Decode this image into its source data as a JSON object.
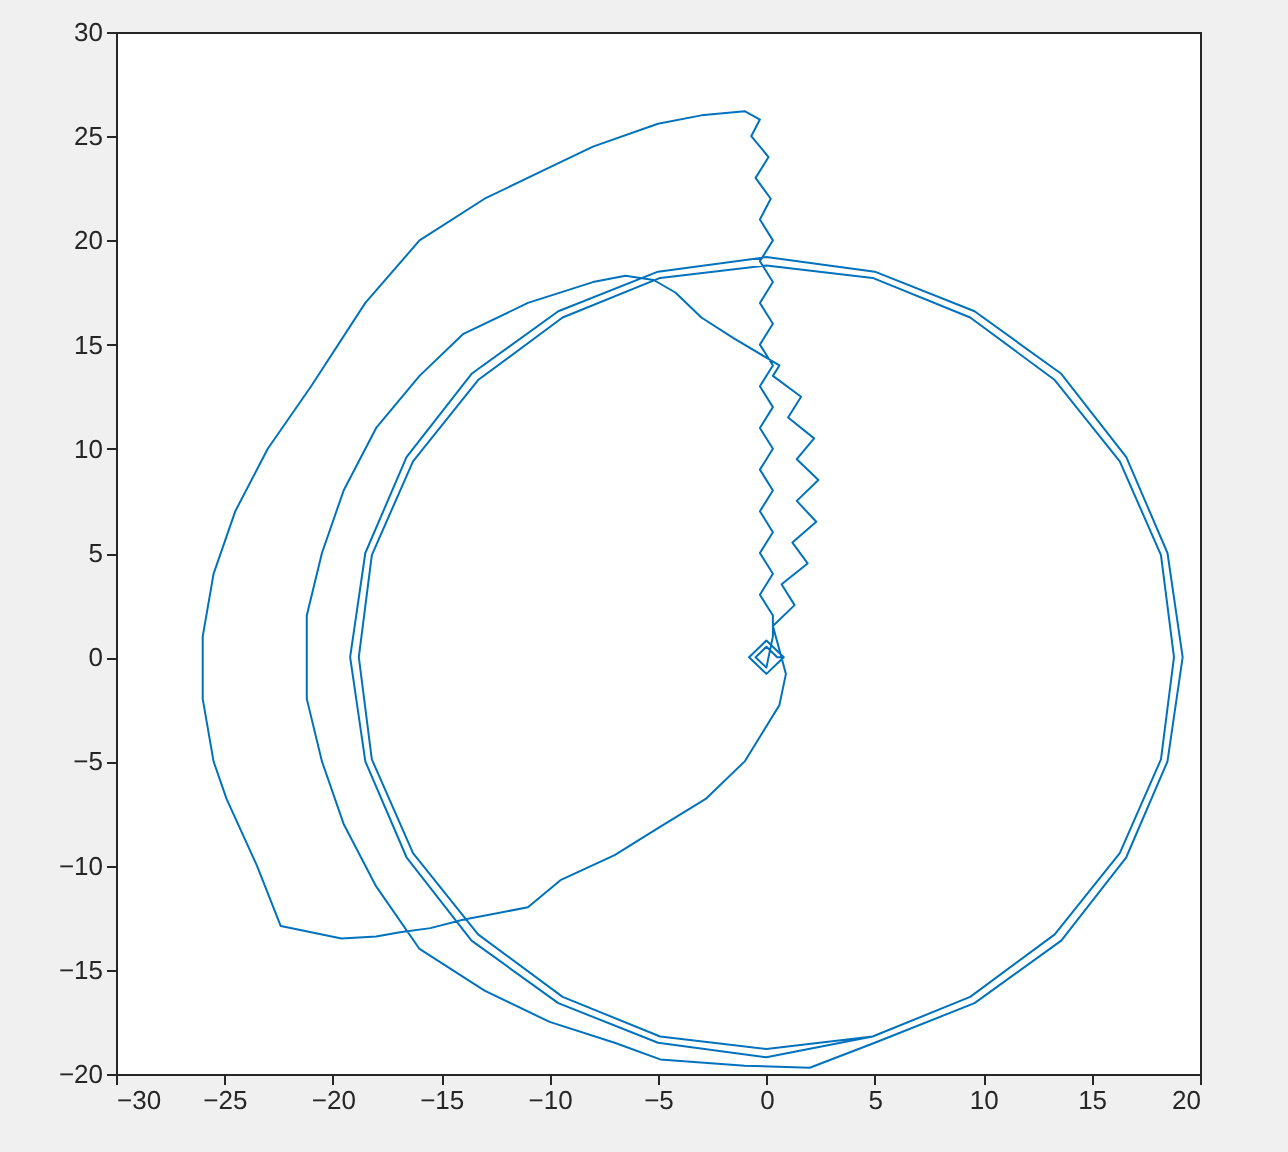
{
  "chart_data": {
    "type": "line",
    "series": [
      {
        "color": "#0072bd",
        "x": [
          0.8,
          0,
          -0.8,
          0,
          0.8,
          0.5,
          0,
          -0.5,
          0,
          0.3,
          0.3,
          -0.3,
          0.3,
          -0.3,
          0.3,
          -0.3,
          0.3,
          -0.3,
          0.3,
          -0.3,
          0.3,
          -0.3,
          0.3,
          -0.3,
          0.3,
          -0.3,
          0.3,
          -0.3,
          0.3,
          -0.3,
          0.2,
          -0.5,
          0.1,
          -0.7,
          -0.3,
          -1,
          -3,
          -5,
          -8,
          -10,
          -13,
          -16,
          -18.5,
          -21,
          -23,
          -24.5,
          -25.5,
          -26,
          -26,
          -25.5,
          -24.9,
          -23.5,
          -22.4,
          -21,
          -19.6,
          -18,
          -16.9,
          -15.5,
          -14,
          -11,
          -9.5,
          -7,
          -5,
          -2.8,
          -1,
          0.6,
          0.9,
          0.3,
          1.3,
          0.7,
          1.9,
          1.2,
          2.3,
          1.4,
          2.4,
          1.4,
          2.2,
          1,
          1.6,
          0.3,
          0.6,
          -1.5,
          -3,
          -4.2,
          -5.2,
          -6.5,
          -8,
          -11,
          -14,
          -16,
          -18,
          -19.5,
          -20.5,
          -21.2,
          -21.2,
          -20.5,
          -19.5,
          -18,
          -16,
          -13,
          -10,
          -7,
          -4.9,
          -1,
          2,
          5.0,
          9.6,
          13.6,
          16.6,
          18.5,
          19.2,
          18.5,
          16.6,
          13.6,
          9.6,
          5.0,
          0,
          -5.0,
          -9.6,
          -13.6,
          -16.6,
          -18.5,
          -19.2,
          -18.5,
          -16.6,
          -13.6,
          -9.6,
          -5.0,
          0,
          4.9,
          9.4,
          13.3,
          16.3,
          18.2,
          18.8,
          18.2,
          16.3,
          13.3,
          9.4,
          4.9,
          0,
          -4.9,
          -9.4,
          -13.3,
          -16.3,
          -18.2,
          -18.8,
          -18.2,
          -16.3,
          -13.3,
          -9.4,
          -4.9,
          0,
          4.9
        ],
        "values": [
          0,
          0.8,
          0,
          -0.8,
          0,
          0,
          0.5,
          0,
          -0.5,
          1,
          2,
          3,
          4,
          5,
          6,
          7,
          8,
          9,
          10,
          11,
          12,
          13,
          14,
          15,
          16,
          17,
          18,
          19,
          20,
          21,
          22,
          23,
          24,
          25,
          25.8,
          26.2,
          26,
          25.6,
          24.5,
          23.5,
          22,
          20,
          17,
          13,
          10,
          7,
          4,
          1,
          -2,
          -5,
          -6.8,
          -10,
          -12.9,
          -13.2,
          -13.5,
          -13.4,
          -13.2,
          -13,
          -12.6,
          -12,
          -10.7,
          -9.5,
          -8.2,
          -6.8,
          -5,
          -2.3,
          -0.8,
          1.5,
          2.5,
          3.5,
          4.5,
          5.5,
          6.5,
          7.5,
          8.5,
          9.5,
          10.5,
          11.5,
          12.5,
          13.5,
          14,
          15.3,
          16.3,
          17.5,
          18.1,
          18.3,
          18,
          17,
          15.5,
          13.5,
          11,
          8,
          5,
          2,
          -2,
          -5,
          -8,
          -11,
          -14,
          -16,
          -17.5,
          -18.5,
          -19.3,
          -19.6,
          -19.7,
          -18.5,
          -16.6,
          -13.6,
          -9.6,
          -5.0,
          0,
          5.0,
          9.6,
          13.6,
          16.6,
          18.5,
          19.2,
          18.5,
          16.6,
          13.6,
          9.6,
          5.0,
          0,
          -5.0,
          -9.6,
          -13.6,
          -16.6,
          -18.5,
          -19.2,
          -18.2,
          -16.3,
          -13.3,
          -9.4,
          -4.9,
          0,
          4.9,
          9.4,
          13.3,
          16.3,
          18.2,
          18.8,
          18.2,
          16.3,
          13.3,
          9.4,
          4.9,
          0,
          -4.9,
          -9.4,
          -13.3,
          -16.3,
          -18.2,
          -18.8,
          -18.2
        ]
      }
    ],
    "xlim": [
      -30,
      20
    ],
    "xticks": [
      -30,
      -25,
      -20,
      -15,
      -10,
      -5,
      0,
      5,
      10,
      15,
      20
    ],
    "ylim": [
      -20,
      30
    ],
    "yticks": [
      -20,
      -15,
      -10,
      -5,
      0,
      5,
      10,
      15,
      20,
      25,
      30
    ],
    "grid": false,
    "line_style": "solid"
  }
}
